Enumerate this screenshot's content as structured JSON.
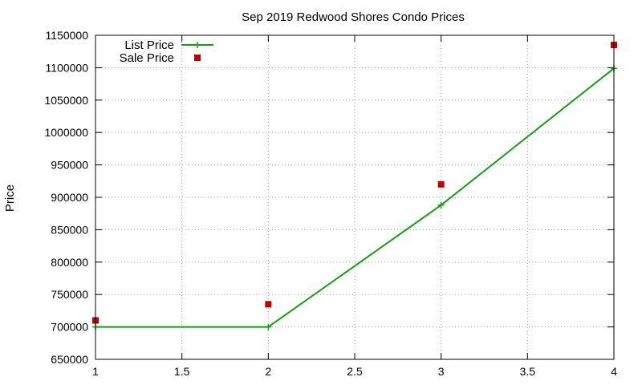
{
  "chart_data": {
    "type": "line",
    "title": "Sep 2019 Redwood Shores Condo Prices",
    "xlabel": "",
    "ylabel": "Price",
    "xlim": [
      1,
      4
    ],
    "ylim": [
      650000,
      1150000
    ],
    "x_ticks": [
      "1",
      "1.5",
      "2",
      "2.5",
      "3",
      "3.5",
      "4"
    ],
    "y_ticks": [
      "650000",
      "700000",
      "750000",
      "800000",
      "850000",
      "900000",
      "950000",
      "1000000",
      "1050000",
      "1100000",
      "1150000"
    ],
    "grid": true,
    "legend_position": "top-left",
    "series": [
      {
        "name": "List Price",
        "style": "line-with-plus-markers",
        "color": "#11a011",
        "x": [
          1,
          2,
          3,
          4
        ],
        "y": [
          700000,
          700000,
          888000,
          1099000
        ]
      },
      {
        "name": "Sale Price",
        "style": "square-markers",
        "color": "#c00000",
        "x": [
          1,
          2,
          3,
          4
        ],
        "y": [
          710000,
          735000,
          920000,
          1135000
        ]
      }
    ]
  }
}
